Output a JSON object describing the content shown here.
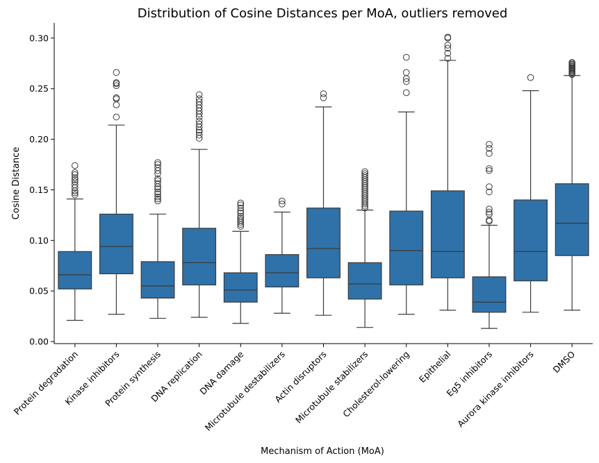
{
  "chart_data": {
    "type": "box",
    "title": "Distribution of Cosine Distances per MoA, outliers removed",
    "xlabel": "Mechanism of Action (MoA)",
    "ylabel": "Cosine Distance",
    "ylim": [
      -0.002,
      0.315
    ],
    "yticks": [
      0.0,
      0.05,
      0.1,
      0.15,
      0.2,
      0.25,
      0.3
    ],
    "ytick_labels": [
      "0.00",
      "0.05",
      "0.10",
      "0.15",
      "0.20",
      "0.25",
      "0.30"
    ],
    "box_color": "#2f72a9",
    "edge_color": "#3a3a3a",
    "categories": [
      "Protein degradation",
      "Kinase inhibitors",
      "Protein synthesis",
      "DNA replication",
      "DNA damage",
      "Microtubule destabilizers",
      "Actin disruptors",
      "Microtubule stabilizers",
      "Cholesterol-lowering",
      "Epithelial",
      "Eg5 inhibitors",
      "Aurora kinase inhibitors",
      "DMSO"
    ],
    "boxes": [
      {
        "whislo": 0.021,
        "q1": 0.052,
        "med": 0.066,
        "q3": 0.089,
        "whishi": 0.141,
        "fliers": [
          0.145,
          0.147,
          0.149,
          0.152,
          0.155,
          0.158,
          0.16,
          0.162,
          0.165,
          0.167,
          0.174
        ]
      },
      {
        "whislo": 0.027,
        "q1": 0.067,
        "med": 0.094,
        "q3": 0.126,
        "whishi": 0.214,
        "fliers": [
          0.222,
          0.234,
          0.24,
          0.241,
          0.253,
          0.255,
          0.256,
          0.266
        ]
      },
      {
        "whislo": 0.023,
        "q1": 0.043,
        "med": 0.055,
        "q3": 0.079,
        "whishi": 0.126,
        "fliers": [
          0.139,
          0.141,
          0.143,
          0.146,
          0.148,
          0.151,
          0.153,
          0.156,
          0.159,
          0.161,
          0.166,
          0.169,
          0.172,
          0.175,
          0.177
        ]
      },
      {
        "whislo": 0.024,
        "q1": 0.056,
        "med": 0.078,
        "q3": 0.112,
        "whishi": 0.19,
        "fliers": [
          0.201,
          0.204,
          0.207,
          0.209,
          0.212,
          0.215,
          0.218,
          0.222,
          0.225,
          0.228,
          0.231,
          0.234,
          0.237,
          0.24,
          0.244
        ]
      },
      {
        "whislo": 0.018,
        "q1": 0.039,
        "med": 0.051,
        "q3": 0.068,
        "whishi": 0.109,
        "fliers": [
          0.114,
          0.116,
          0.118,
          0.12,
          0.122,
          0.124,
          0.127,
          0.129,
          0.132,
          0.135,
          0.137
        ]
      },
      {
        "whislo": 0.028,
        "q1": 0.054,
        "med": 0.068,
        "q3": 0.086,
        "whishi": 0.128,
        "fliers": [
          0.136,
          0.139
        ]
      },
      {
        "whislo": 0.026,
        "q1": 0.063,
        "med": 0.092,
        "q3": 0.132,
        "whishi": 0.232,
        "fliers": [
          0.241,
          0.245
        ]
      },
      {
        "whislo": 0.014,
        "q1": 0.042,
        "med": 0.057,
        "q3": 0.078,
        "whishi": 0.13,
        "fliers": [
          0.132,
          0.134,
          0.136,
          0.138,
          0.14,
          0.142,
          0.144,
          0.146,
          0.148,
          0.15,
          0.152,
          0.154,
          0.156,
          0.158,
          0.16,
          0.162,
          0.164,
          0.166,
          0.168
        ]
      },
      {
        "whislo": 0.027,
        "q1": 0.056,
        "med": 0.09,
        "q3": 0.129,
        "whishi": 0.227,
        "fliers": [
          0.246,
          0.257,
          0.26,
          0.266,
          0.281
        ]
      },
      {
        "whislo": 0.031,
        "q1": 0.063,
        "med": 0.089,
        "q3": 0.149,
        "whishi": 0.278,
        "fliers": [
          0.28,
          0.285,
          0.29,
          0.293,
          0.3,
          0.301
        ]
      },
      {
        "whislo": 0.013,
        "q1": 0.029,
        "med": 0.039,
        "q3": 0.064,
        "whishi": 0.115,
        "fliers": [
          0.119,
          0.12,
          0.126,
          0.128,
          0.131,
          0.148,
          0.153,
          0.169,
          0.171,
          0.186,
          0.191,
          0.195
        ]
      },
      {
        "whislo": 0.029,
        "q1": 0.06,
        "med": 0.089,
        "q3": 0.14,
        "whishi": 0.248,
        "fliers": [
          0.261
        ]
      },
      {
        "whislo": 0.031,
        "q1": 0.085,
        "med": 0.117,
        "q3": 0.156,
        "whishi": 0.263,
        "fliers": [
          0.264,
          0.265,
          0.266,
          0.267,
          0.268,
          0.269,
          0.27,
          0.271,
          0.272,
          0.273,
          0.274,
          0.275,
          0.276
        ]
      }
    ]
  }
}
